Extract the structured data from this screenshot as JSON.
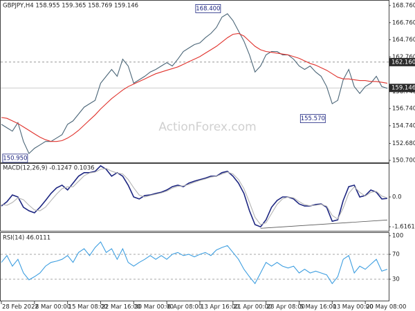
{
  "chart_data": [
    {
      "type": "line",
      "title": "GBPJPY,H4 158.955 159.365 158.769 159.146",
      "watermark": "ActionForex.com",
      "xlim": [
        0,
        70
      ],
      "ylim": [
        150.54,
        169.24
      ],
      "yticks": [
        {
          "value": 168.76,
          "label": "168.760"
        },
        {
          "value": 166.76,
          "label": "166.760"
        },
        {
          "value": 164.76,
          "label": "164.760"
        },
        {
          "value": 162.76,
          "label": "162.760"
        },
        {
          "value": 158.74,
          "label": "158.740"
        },
        {
          "value": 156.74,
          "label": "156.740"
        },
        {
          "value": 154.74,
          "label": "154.740"
        },
        {
          "value": 152.68,
          "label": "152.680"
        },
        {
          "value": 150.7,
          "label": "150.700"
        }
      ],
      "levels": [
        {
          "value": 162.16,
          "label": "162.160"
        }
      ],
      "last": {
        "value": 159.146,
        "label": "159.146"
      },
      "annotations": [
        {
          "label": "168.400",
          "x": 40,
          "value": 168.4
        },
        {
          "label": "155.570",
          "x": 59,
          "value": 155.57
        },
        {
          "label": "150.950",
          "x": 5,
          "value": 150.95
        }
      ],
      "series": [
        {
          "color": "#4a6577",
          "values": [
            154.9,
            154.5,
            154.1,
            155.1,
            152.9,
            151.5,
            152.1,
            152.5,
            152.9,
            152.9,
            153.3,
            153.7,
            154.9,
            155.3,
            156.1,
            156.9,
            157.3,
            157.7,
            159.7,
            160.5,
            161.3,
            160.5,
            162.5,
            161.7,
            159.7,
            160.1,
            160.5,
            161.0,
            161.3,
            161.7,
            162.1,
            161.7,
            162.5,
            163.4,
            163.8,
            164.2,
            164.4,
            165.0,
            165.5,
            166.2,
            167.4,
            167.8,
            167.0,
            165.8,
            164.6,
            163.0,
            161.0,
            161.7,
            163.0,
            163.4,
            163.4,
            163.0,
            163.0,
            162.5,
            161.7,
            161.3,
            161.7,
            161.0,
            160.5,
            159.3,
            157.3,
            157.7,
            160.1,
            161.3,
            159.3,
            158.5,
            159.3,
            159.7,
            160.5,
            159.3,
            159.1
          ]
        },
        {
          "color": "#e0312b",
          "values": [
            155.7,
            155.6,
            155.3,
            155.0,
            154.6,
            154.2,
            153.8,
            153.4,
            153.1,
            152.9,
            152.9,
            153.0,
            153.3,
            153.7,
            154.2,
            154.8,
            155.4,
            156.0,
            156.7,
            157.3,
            157.9,
            158.4,
            158.9,
            159.3,
            159.6,
            159.9,
            160.2,
            160.5,
            160.8,
            161.0,
            161.2,
            161.4,
            161.6,
            161.9,
            162.2,
            162.5,
            162.8,
            163.2,
            163.6,
            164.0,
            164.5,
            165.0,
            165.4,
            165.5,
            165.2,
            164.6,
            164.0,
            163.6,
            163.4,
            163.3,
            163.2,
            163.1,
            163.0,
            162.8,
            162.6,
            162.3,
            162.0,
            161.8,
            161.5,
            161.2,
            160.8,
            160.4,
            160.2,
            160.2,
            160.1,
            160.0,
            160.0,
            159.9,
            159.9,
            159.8,
            159.7
          ]
        }
      ]
    },
    {
      "type": "line",
      "title": "MACD(12,26,9) -0.1247 0.1036",
      "xlim": [
        0,
        70
      ],
      "ylim": [
        -1.8,
        1.8
      ],
      "yticks": [
        {
          "value": 0,
          "label": "0.0"
        },
        -1.6161
      ],
      "trendline": {
        "x": [
          47,
          70
        ],
        "values": [
          -1.7,
          -1.25
        ]
      },
      "series": [
        {
          "color": "#1c2580",
          "values": [
            -0.49,
            -0.26,
            0.11,
            0,
            -0.56,
            -0.75,
            -0.86,
            -0.56,
            -0.19,
            0.19,
            0.49,
            0.64,
            0.38,
            0.75,
            1.13,
            1.32,
            1.32,
            1.39,
            1.69,
            1.5,
            1.13,
            1.32,
            1.13,
            0.64,
            0,
            -0.11,
            0.08,
            0.11,
            0.19,
            0.26,
            0.38,
            0.56,
            0.64,
            0.56,
            0.75,
            0.86,
            0.94,
            1.02,
            1.13,
            1.13,
            1.32,
            1.39,
            1.13,
            0.75,
            0.19,
            -0.75,
            -1.5,
            -1.62,
            -1.24,
            -0.56,
            -0.19,
            0,
            0,
            -0.11,
            -0.38,
            -0.49,
            -0.49,
            -0.41,
            -0.38,
            -0.56,
            -1.32,
            -1.24,
            -0.19,
            0.56,
            0.64,
            0,
            0.08,
            0.38,
            0.26,
            -0.11,
            -0.08
          ]
        },
        {
          "color": "#b4b4b4",
          "values": [
            -0.4,
            -0.45,
            -0.3,
            -0.05,
            -0.15,
            -0.45,
            -0.7,
            -0.75,
            -0.55,
            -0.2,
            0.15,
            0.45,
            0.55,
            0.55,
            0.85,
            1.15,
            1.3,
            1.35,
            1.5,
            1.55,
            1.4,
            1.3,
            1.25,
            0.95,
            0.5,
            0.1,
            0.0,
            0.08,
            0.15,
            0.22,
            0.32,
            0.48,
            0.58,
            0.6,
            0.68,
            0.8,
            0.9,
            0.98,
            1.08,
            1.12,
            1.25,
            1.35,
            1.25,
            0.95,
            0.45,
            -0.3,
            -1.1,
            -1.5,
            -1.4,
            -0.9,
            -0.4,
            -0.1,
            0.0,
            -0.05,
            -0.25,
            -0.42,
            -0.48,
            -0.45,
            -0.4,
            -0.5,
            -1.0,
            -1.2,
            -0.6,
            0.2,
            0.55,
            0.25,
            0.05,
            0.25,
            0.3,
            0.05,
            -0.05
          ]
        }
      ]
    },
    {
      "type": "line",
      "title": "RSI(14) 46.0111",
      "xlim": [
        0,
        70
      ],
      "ylim": [
        0,
        100
      ],
      "yticks": [
        100,
        70,
        30
      ],
      "levels": [
        70,
        30
      ],
      "xticks": [
        {
          "value": 0,
          "label": "28 Feb 2022"
        },
        {
          "value": 6,
          "label": "8 Mar 00:00"
        },
        {
          "value": 12,
          "label": "15 Mar 08:00"
        },
        {
          "value": 18,
          "label": "22 Mar 16:00"
        },
        {
          "value": 24,
          "label": "30 Mar 00:00"
        },
        {
          "value": 30,
          "label": "6 Apr 08:00"
        },
        {
          "value": 36,
          "label": "13 Apr 16:00"
        },
        {
          "value": 42,
          "label": "21 Apr 00:00"
        },
        {
          "value": 48,
          "label": "28 Apr 08:00"
        },
        {
          "value": 54,
          "label": "5 May 16:00"
        },
        {
          "value": 60,
          "label": "13 May 00:00"
        },
        {
          "value": 66,
          "label": "20 May 08:00"
        }
      ],
      "series": [
        {
          "color": "#3d9ee0",
          "values": [
            57,
            68,
            51,
            62,
            40,
            29,
            34,
            40,
            51,
            57,
            59,
            62,
            68,
            57,
            73,
            79,
            68,
            81,
            90,
            73,
            79,
            62,
            79,
            57,
            51,
            57,
            62,
            68,
            62,
            68,
            62,
            70,
            73,
            68,
            70,
            66,
            70,
            73,
            68,
            77,
            81,
            84,
            73,
            62,
            46,
            34,
            23,
            40,
            57,
            51,
            57,
            51,
            48,
            51,
            40,
            46,
            40,
            43,
            40,
            37,
            23,
            34,
            62,
            68,
            40,
            51,
            46,
            54,
            62,
            43,
            46
          ]
        }
      ]
    }
  ]
}
